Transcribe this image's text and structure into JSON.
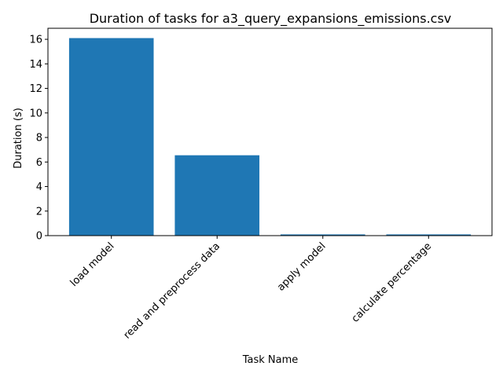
{
  "chart_data": {
    "type": "bar",
    "title": "Duration of tasks for a3_query_expansions_emissions.csv",
    "xlabel": "Task Name",
    "ylabel": "Duration (s)",
    "categories": [
      "load model",
      "read and preprocess data",
      "apply model",
      "calculate percentage"
    ],
    "values": [
      16.1,
      6.55,
      0.1,
      0.1
    ],
    "ylim": [
      0,
      16.9
    ],
    "yticks": [
      0,
      2,
      4,
      6,
      8,
      10,
      12,
      14,
      16
    ],
    "ytick_labels": [
      "0",
      "2",
      "4",
      "6",
      "8",
      "10",
      "12",
      "14",
      "16"
    ],
    "xtick_rotation": 45,
    "grid": false,
    "legend": "none",
    "colors": {
      "bar": "#1f77b4",
      "axes": "#000000",
      "background": "#ffffff"
    }
  }
}
